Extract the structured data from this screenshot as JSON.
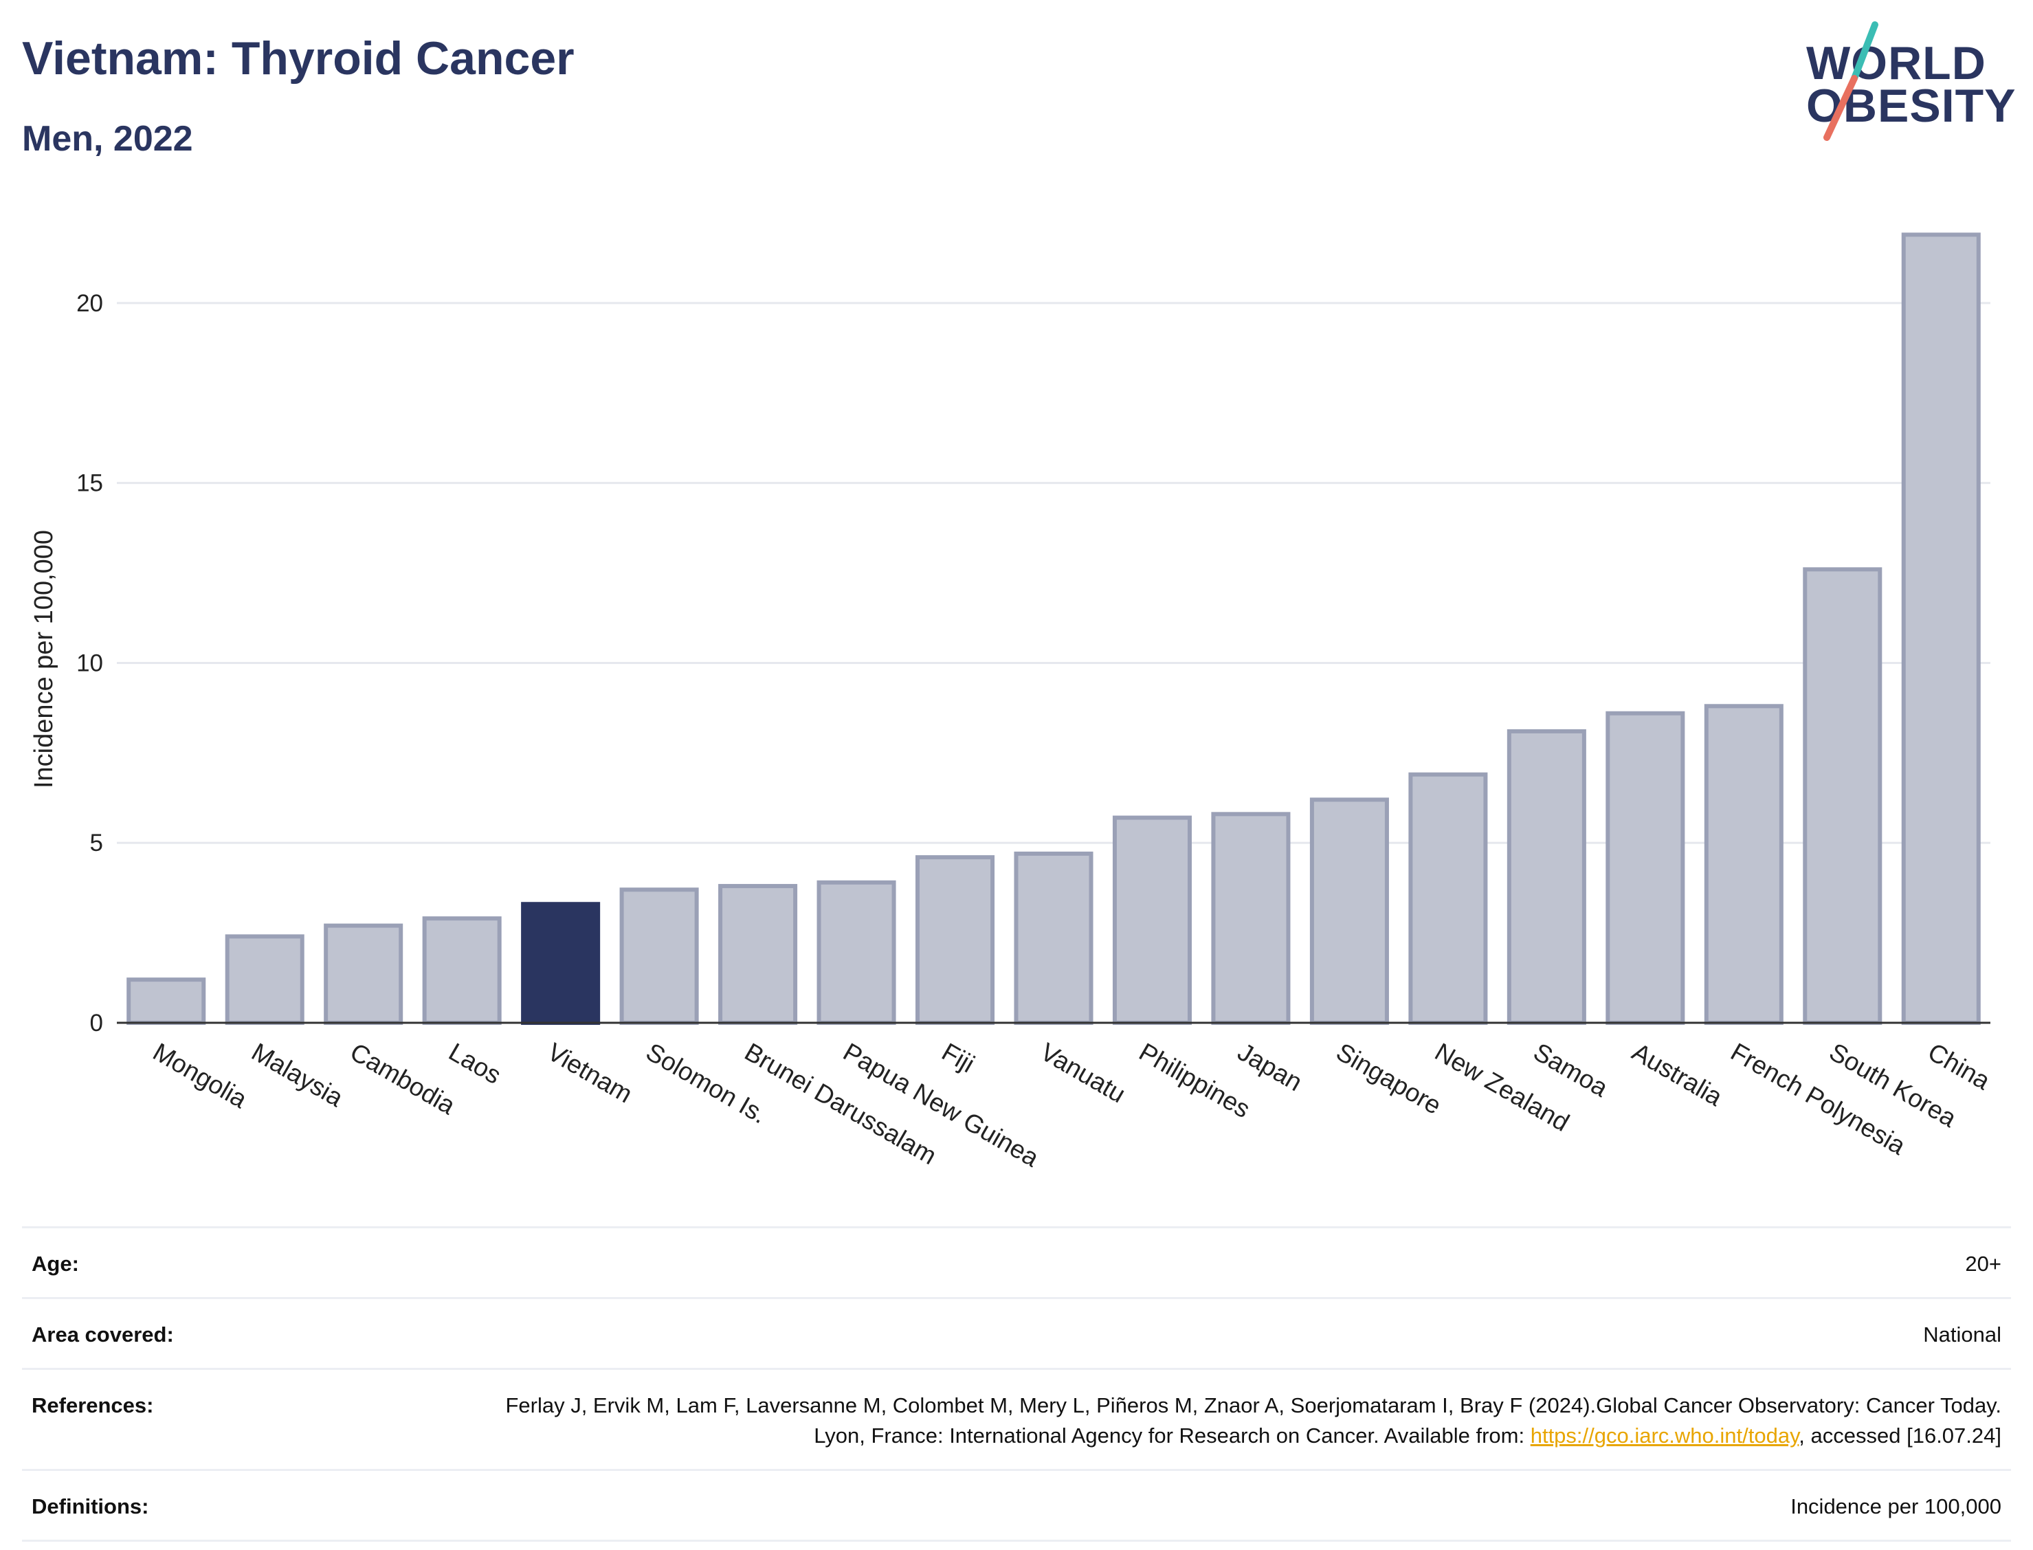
{
  "header": {
    "title": "Vietnam: Thyroid Cancer",
    "subtitle": "Men, 2022"
  },
  "logo": {
    "line1": "WORLD",
    "line2": "OBESITY",
    "slash_colors": [
      "#3bbdb4",
      "#e8705f"
    ]
  },
  "colors": {
    "highlight_bar": "#2a3560",
    "bar_fill": "#bfc3d0",
    "bar_stroke": "#9aa0b6",
    "gridline": "#e6e8ee",
    "axis": "#333333"
  },
  "chart_data": {
    "type": "bar",
    "title": "Vietnam: Thyroid Cancer",
    "subtitle": "Men, 2022",
    "xlabel": "",
    "ylabel": "Incidence per 100,000",
    "ylim": [
      0,
      22.5
    ],
    "yticks": [
      0,
      5,
      10,
      15,
      20
    ],
    "grid": true,
    "highlight": "Vietnam",
    "categories": [
      "Mongolia",
      "Malaysia",
      "Cambodia",
      "Laos",
      "Vietnam",
      "Solomon Is.",
      "Brunei Darussalam",
      "Papua New Guinea",
      "Fiji",
      "Vanuatu",
      "Philippines",
      "Japan",
      "Singapore",
      "New Zealand",
      "Samoa",
      "Australia",
      "French Polynesia",
      "South Korea",
      "China"
    ],
    "values": [
      1.2,
      2.4,
      2.7,
      2.9,
      3.3,
      3.7,
      3.8,
      3.9,
      4.6,
      4.7,
      5.7,
      5.8,
      6.2,
      6.9,
      8.1,
      8.6,
      8.8,
      12.6,
      21.9
    ]
  },
  "info": {
    "age_label": "Age:",
    "age_value": "20+",
    "area_label": "Area covered:",
    "area_value": "National",
    "references_label": "References:",
    "references_text_1": "Ferlay J, Ervik M, Lam F, Laversanne M, Colombet M, Mery L, Piñeros M, Znaor A, Soerjomataram I, Bray F (2024).Global Cancer Observatory: Cancer Today. Lyon, France: International Agency for Research on Cancer. Available from: ",
    "references_link": "https://gco.iarc.who.int/today",
    "references_text_2": ", accessed [16.07.24]",
    "definitions_label": "Definitions:",
    "definitions_value": "Incidence per 100,000"
  }
}
